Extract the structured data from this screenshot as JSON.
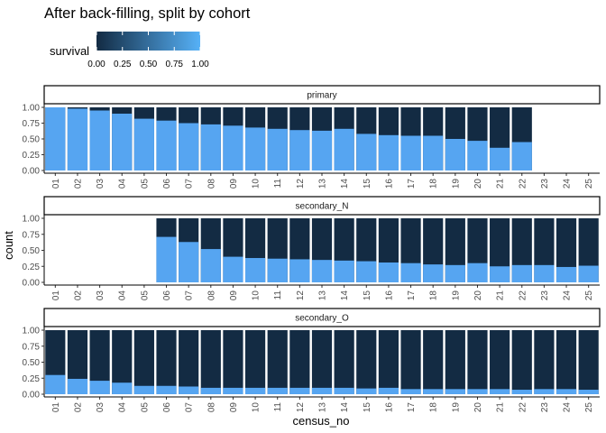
{
  "chart_data": {
    "type": "bar",
    "title": "After back-filling, split by cohort",
    "xlabel": "census_no",
    "ylabel": "count",
    "ylim": [
      0,
      1
    ],
    "y_ticks": [
      "0.00",
      "0.25",
      "0.50",
      "0.75",
      "1.00"
    ],
    "position": "fill (stacked proportion)",
    "categories": [
      "01",
      "02",
      "03",
      "04",
      "05",
      "06",
      "07",
      "08",
      "09",
      "10",
      "11",
      "12",
      "13",
      "14",
      "15",
      "16",
      "17",
      "18",
      "19",
      "20",
      "21",
      "22",
      "23",
      "24",
      "25"
    ],
    "legend": {
      "title": "survival",
      "type": "colorbar",
      "placement": "top-left",
      "low_color": "#132B43",
      "high_color": "#56B1F7",
      "ticks": [
        "0.00",
        "0.25",
        "0.50",
        "0.75",
        "1.00"
      ]
    },
    "colors": {
      "survived": "#56A5F1",
      "not_survived": "#132B43"
    },
    "panels": [
      {
        "label": "primary",
        "values": [
          1.0,
          0.98,
          0.95,
          0.9,
          0.82,
          0.79,
          0.75,
          0.73,
          0.71,
          0.68,
          0.66,
          0.64,
          0.63,
          0.66,
          0.58,
          0.56,
          0.55,
          0.55,
          0.5,
          0.47,
          0.36,
          0.45,
          null,
          null,
          null
        ]
      },
      {
        "label": "secondary_N",
        "values": [
          null,
          null,
          null,
          null,
          null,
          0.71,
          0.63,
          0.52,
          0.4,
          0.38,
          0.37,
          0.36,
          0.35,
          0.34,
          0.33,
          0.31,
          0.3,
          0.28,
          0.27,
          0.3,
          0.25,
          0.27,
          0.27,
          0.24,
          0.26
        ]
      },
      {
        "label": "secondary_O",
        "values": [
          0.3,
          0.24,
          0.21,
          0.18,
          0.13,
          0.13,
          0.12,
          0.1,
          0.1,
          0.1,
          0.1,
          0.1,
          0.1,
          0.1,
          0.09,
          0.1,
          0.08,
          0.08,
          0.08,
          0.08,
          0.08,
          0.07,
          0.08,
          0.08,
          0.07
        ]
      }
    ]
  }
}
